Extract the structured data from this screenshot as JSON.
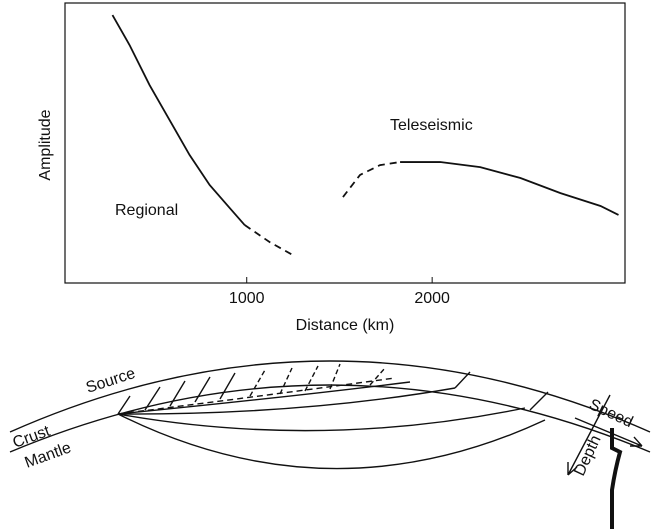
{
  "chart_data": {
    "type": "line",
    "xlabel": "Distance (km)",
    "ylabel": "Amplitude",
    "xlim": [
      20,
      3040
    ],
    "xticks": [
      1000,
      2000
    ],
    "ylim": [
      0,
      10
    ],
    "yticks": [],
    "color": "#111111",
    "series": [
      {
        "name": "Regional",
        "parts": [
          {
            "style": "solid",
            "x": [
              276,
              368,
              476,
              584,
              692,
              800,
              908,
              989
            ],
            "values": [
              9.57,
              8.5,
              7.07,
              5.82,
              4.57,
              3.5,
              2.68,
              2.07
            ]
          },
          {
            "style": "dashed",
            "x": [
              989,
              1124,
              1259
            ],
            "values": [
              2.07,
              1.46,
              0.96
            ]
          }
        ]
      },
      {
        "name": "Teleseismic",
        "parts": [
          {
            "style": "dashed",
            "x": [
              1519,
              1611,
              1719,
              1827
            ],
            "values": [
              3.07,
              3.86,
              4.21,
              4.32
            ]
          },
          {
            "style": "solid",
            "x": [
              1827,
              2043,
              2259,
              2476,
              2692,
              2908,
              3005
            ],
            "values": [
              4.32,
              4.32,
              4.14,
              3.75,
              3.21,
              2.75,
              2.43
            ]
          }
        ]
      }
    ]
  },
  "diagram": {
    "labels": {
      "source": "Source",
      "crust": "Crust",
      "mantle": "Mantle",
      "speed": "Speed",
      "depth": "Depth"
    }
  }
}
